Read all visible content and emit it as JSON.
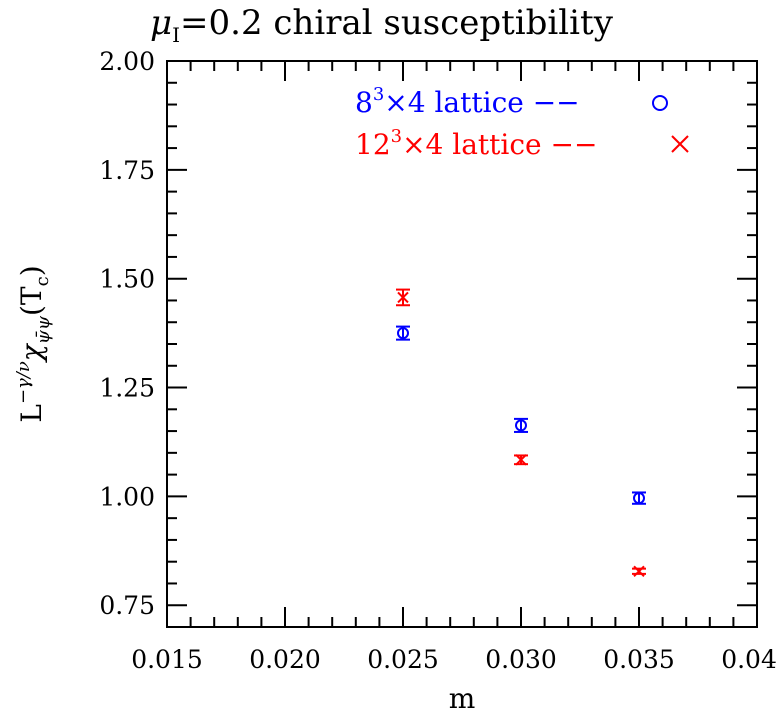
{
  "chart_data": {
    "type": "scatter",
    "title": {
      "mu": "μ",
      "mu_sub": "I",
      "rest": "=0.2 chiral susceptibility"
    },
    "xlabel": "m",
    "ylabel": {
      "base": "L",
      "exp": "−γ/ν",
      "chi": "χ",
      "chi_sub": "ψ̄ψ",
      "arg_open": "(T",
      "arg_sub": "c",
      "arg_close": ")"
    },
    "xlim": [
      0.015,
      0.04
    ],
    "ylim": [
      0.7,
      2.0
    ],
    "x_ticks": [
      0.015,
      0.02,
      0.025,
      0.03,
      0.035,
      0.04
    ],
    "x_tick_labels": [
      "0.015",
      "0.020",
      "0.025",
      "0.030",
      "0.035",
      "0.040"
    ],
    "y_ticks": [
      0.75,
      1.0,
      1.25,
      1.5,
      1.75,
      2.0
    ],
    "y_tick_labels": [
      "0.75",
      "1.00",
      "1.25",
      "1.50",
      "1.75",
      "2.00"
    ],
    "grid": false,
    "legend_position": "top-right",
    "series": [
      {
        "name": {
          "lead": "8",
          "sup": "3",
          "rest": "×4 lattice  −−"
        },
        "color": "#0000ff",
        "marker": "circle",
        "points": [
          {
            "x": 0.025,
            "y": 1.375,
            "err": 0.015
          },
          {
            "x": 0.03,
            "y": 1.163,
            "err": 0.015
          },
          {
            "x": 0.035,
            "y": 0.996,
            "err": 0.013
          }
        ]
      },
      {
        "name": {
          "lead": "12",
          "sup": "3",
          "rest": "×4 lattice  −−"
        },
        "color": "#ff0000",
        "marker": "cross",
        "points": [
          {
            "x": 0.025,
            "y": 1.457,
            "err": 0.018
          },
          {
            "x": 0.03,
            "y": 1.084,
            "err": 0.01
          },
          {
            "x": 0.035,
            "y": 0.828,
            "err": 0.006
          }
        ]
      }
    ]
  }
}
